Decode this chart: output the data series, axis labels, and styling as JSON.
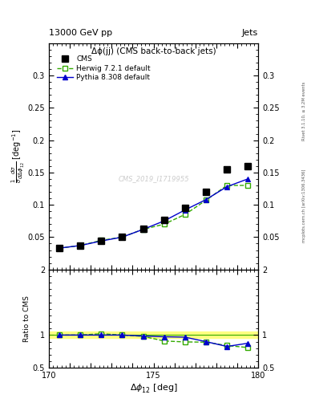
{
  "title_top": "13000 GeV pp",
  "title_right": "Jets",
  "plot_title": "Δϕ(jj) (CMS back-to-back jets)",
  "watermark": "CMS_2019_I1719955",
  "right_label": "mcplots.cern.ch [arXiv:1306.3436]",
  "right_label2": "Rivet 3.1.10, ≥ 3.2M events",
  "x_data": [
    170.5,
    171.5,
    172.5,
    173.5,
    174.5,
    175.5,
    176.5,
    177.5,
    178.5,
    179.5
  ],
  "cms_y": [
    0.033,
    0.037,
    0.044,
    0.05,
    0.063,
    0.077,
    0.095,
    0.12,
    0.155,
    0.16
  ],
  "herwig_y": [
    0.033,
    0.037,
    0.045,
    0.05,
    0.062,
    0.07,
    0.085,
    0.107,
    0.13,
    0.13
  ],
  "pythia_y": [
    0.033,
    0.037,
    0.044,
    0.05,
    0.062,
    0.075,
    0.092,
    0.108,
    0.128,
    0.14
  ],
  "herwig_ratio": [
    1.0,
    1.0,
    1.02,
    1.0,
    0.98,
    0.91,
    0.895,
    0.892,
    0.84,
    0.81
  ],
  "pythia_ratio": [
    1.0,
    1.0,
    1.0,
    1.0,
    0.985,
    0.974,
    0.968,
    0.9,
    0.826,
    0.875
  ],
  "cms_color": "#000000",
  "herwig_color": "#33aa00",
  "pythia_color": "#0000cc",
  "xlim": [
    170,
    180
  ],
  "ylim_main": [
    0.0,
    0.35
  ],
  "ylim_ratio": [
    0.5,
    2.0
  ],
  "yticks_main": [
    0.05,
    0.1,
    0.15,
    0.2,
    0.25,
    0.3
  ],
  "yticks_ratio": [
    0.5,
    1.0,
    2.0
  ],
  "xticks": [
    170,
    171,
    172,
    173,
    174,
    175,
    176,
    177,
    178,
    179,
    180
  ],
  "xtick_labels": [
    "170",
    "",
    "",
    "",
    "",
    "175",
    "",
    "",
    "",
    "",
    "180"
  ]
}
